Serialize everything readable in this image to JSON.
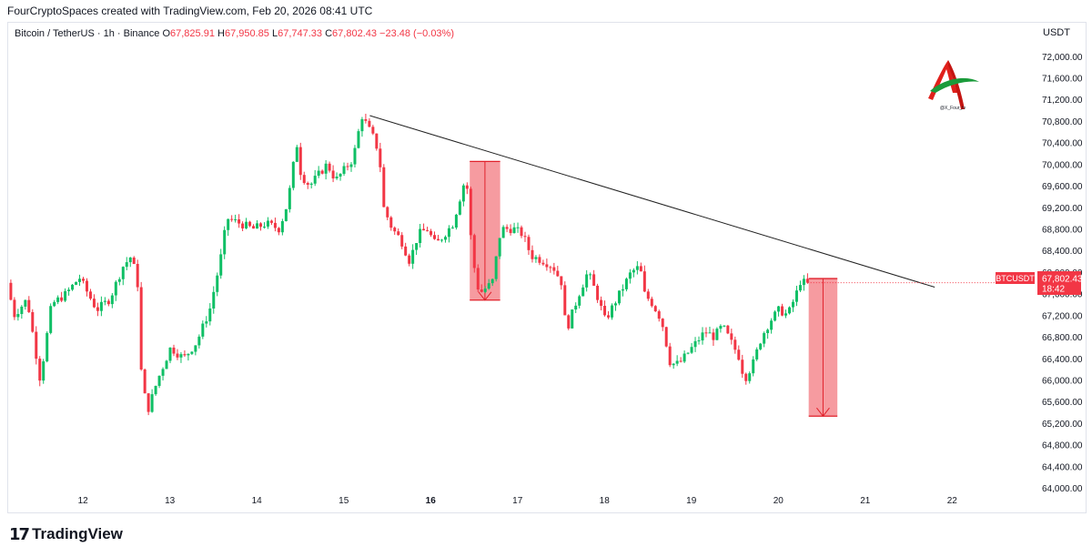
{
  "header": {
    "credit": "FourCryptoSpaces created with TradingView.com, Feb 20, 2026 08:41 UTC"
  },
  "legend": {
    "symbol": "Bitcoin / TetherUS · 1h · Binance",
    "open_label": "O",
    "open": "67,825.91",
    "high_label": "H",
    "high": "67,950.85",
    "low_label": "L",
    "low": "67,747.33",
    "close_label": "C",
    "close": "67,802.43",
    "change": "−23.48 (−0.03%)"
  },
  "axis": {
    "unit": "USDT"
  },
  "price_tag": {
    "symbol": "BTCUSDT",
    "price": "67,802.43",
    "countdown": "18:42"
  },
  "watermark": {
    "handle": "@X_Four_tv",
    "colors": [
      "#e0201b",
      "#1a9b3a"
    ]
  },
  "footer": {
    "brand": "TradingView",
    "logo_mark": "17"
  },
  "colors": {
    "up": "#26a69a",
    "up_body": "#0fbf65",
    "down": "#f23645",
    "box": "#f58a8f",
    "box_border": "#e0202a",
    "trend": "#222222"
  },
  "chart_data": {
    "type": "candlestick",
    "title": "Bitcoin / TetherUS · 1h · Binance",
    "xlabel": "",
    "ylabel": "",
    "ylim": [
      63900,
      72300
    ],
    "y_ticks": [
      64000,
      64400,
      64800,
      65200,
      65600,
      66000,
      66400,
      66800,
      67200,
      67600,
      68000,
      68400,
      68800,
      69200,
      69600,
      70000,
      70400,
      70800,
      71200,
      71600,
      72000
    ],
    "y_tick_labels": [
      "64,000.00",
      "64,400.00",
      "64,800.00",
      "65,200.00",
      "65,600.00",
      "66,000.00",
      "66,400.00",
      "66,800.00",
      "67,200.00",
      "67,600.00",
      "68,000.00",
      "68,400.00",
      "68,800.00",
      "69,200.00",
      "69,600.00",
      "70,000.00",
      "70,400.00",
      "70,800.00",
      "71,200.00",
      "71,600.00",
      "72,000.00"
    ],
    "x_ticks": [
      12,
      13,
      14,
      15,
      16,
      17,
      18,
      19,
      20,
      21,
      22
    ],
    "x_tick_labels": [
      "12",
      "13",
      "14",
      "15",
      "16",
      "17",
      "18",
      "19",
      "20",
      "21",
      "22"
    ],
    "bold_x_tick": "16",
    "xlim": [
      11.15,
      22.95
    ],
    "path": [
      [
        11.17,
        67800
      ],
      [
        11.25,
        67200
      ],
      [
        11.4,
        67500
      ],
      [
        11.55,
        66000
      ],
      [
        11.68,
        67400
      ],
      [
        11.85,
        67600
      ],
      [
        12.0,
        67900
      ],
      [
        12.2,
        67300
      ],
      [
        12.35,
        67500
      ],
      [
        12.5,
        68100
      ],
      [
        12.6,
        68300
      ],
      [
        12.68,
        67700
      ],
      [
        12.7,
        66300
      ],
      [
        12.78,
        65400
      ],
      [
        12.9,
        66000
      ],
      [
        13.05,
        66600
      ],
      [
        13.2,
        66400
      ],
      [
        13.35,
        66700
      ],
      [
        13.5,
        67300
      ],
      [
        13.62,
        68200
      ],
      [
        13.7,
        69000
      ],
      [
        13.85,
        68900
      ],
      [
        14.0,
        68800
      ],
      [
        14.15,
        68900
      ],
      [
        14.3,
        68800
      ],
      [
        14.4,
        69300
      ],
      [
        14.5,
        70400
      ],
      [
        14.55,
        69800
      ],
      [
        14.65,
        69600
      ],
      [
        14.75,
        69800
      ],
      [
        14.85,
        70000
      ],
      [
        14.95,
        69700
      ],
      [
        15.05,
        69900
      ],
      [
        15.15,
        70100
      ],
      [
        15.25,
        70900
      ],
      [
        15.38,
        70500
      ],
      [
        15.45,
        70200
      ],
      [
        15.5,
        69200
      ],
      [
        15.6,
        68800
      ],
      [
        15.7,
        68600
      ],
      [
        15.8,
        68200
      ],
      [
        15.9,
        68700
      ],
      [
        16.0,
        68800
      ],
      [
        16.1,
        68500
      ],
      [
        16.2,
        68700
      ],
      [
        16.3,
        68900
      ],
      [
        16.45,
        69800
      ],
      [
        16.52,
        68300
      ],
      [
        16.6,
        67600
      ],
      [
        16.75,
        67800
      ],
      [
        16.85,
        68800
      ],
      [
        17.0,
        68800
      ],
      [
        17.1,
        68700
      ],
      [
        17.2,
        68300
      ],
      [
        17.35,
        68200
      ],
      [
        17.45,
        68100
      ],
      [
        17.55,
        67800
      ],
      [
        17.6,
        66900
      ],
      [
        17.75,
        67600
      ],
      [
        17.85,
        68000
      ],
      [
        17.95,
        67600
      ],
      [
        18.05,
        67100
      ],
      [
        18.15,
        67400
      ],
      [
        18.25,
        67700
      ],
      [
        18.35,
        68000
      ],
      [
        18.45,
        68100
      ],
      [
        18.5,
        67600
      ],
      [
        18.6,
        67400
      ],
      [
        18.7,
        67100
      ],
      [
        18.8,
        66300
      ],
      [
        18.9,
        66300
      ],
      [
        19.0,
        66500
      ],
      [
        19.1,
        66700
      ],
      [
        19.2,
        66900
      ],
      [
        19.3,
        66800
      ],
      [
        19.4,
        67000
      ],
      [
        19.5,
        66700
      ],
      [
        19.6,
        66400
      ],
      [
        19.65,
        66000
      ],
      [
        19.75,
        66300
      ],
      [
        19.85,
        66800
      ],
      [
        19.95,
        67100
      ],
      [
        20.05,
        67300
      ],
      [
        20.15,
        67200
      ],
      [
        20.25,
        67600
      ],
      [
        20.3,
        67850
      ],
      [
        20.34,
        67802
      ]
    ],
    "annotations": [
      {
        "type": "trendline",
        "from": [
          15.3,
          70900
        ],
        "to": [
          21.8,
          67720
        ]
      },
      {
        "type": "drop-box",
        "x0": 16.45,
        "x1": 16.8,
        "top": 70050,
        "bottom": 67480
      },
      {
        "type": "drop-box",
        "x0": 20.35,
        "x1": 20.68,
        "top": 67880,
        "bottom": 65330
      }
    ],
    "last_price": 67802.43
  }
}
